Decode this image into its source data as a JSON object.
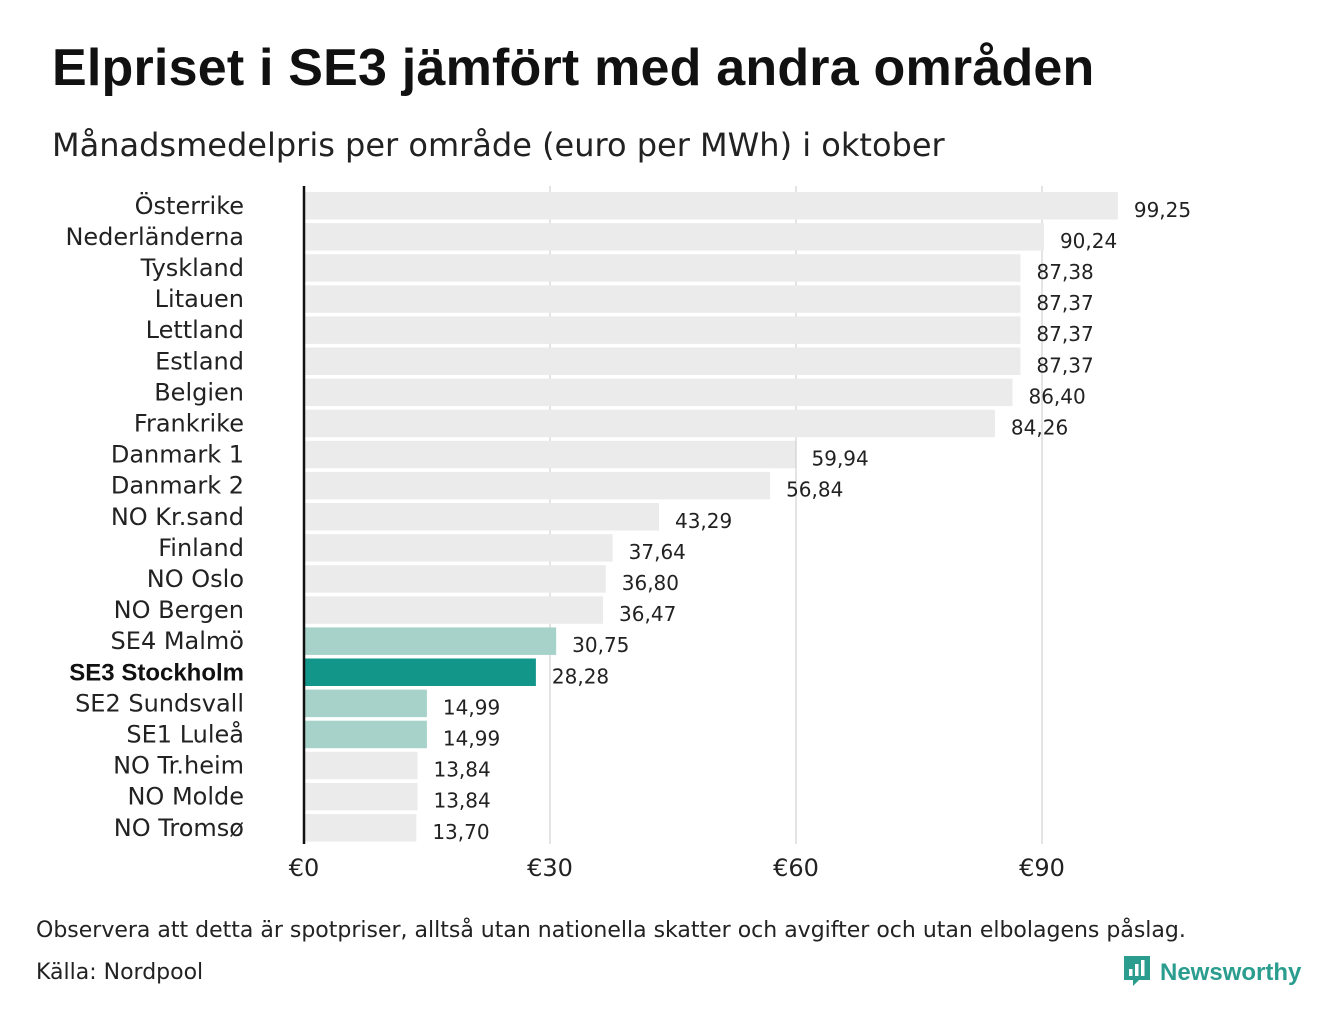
{
  "title": "Elpriset i SE3 jämfört med andra områden",
  "subtitle": "Månadsmedelpris per område (euro per MWh) i oktober",
  "note": "Observera att detta är spotpriser, alltså utan nationella skatter och avgifter och utan elbolagens påslag.",
  "source": "Källa: Nordpool",
  "brand": {
    "name": "Newsworthy",
    "icon": "newsworthy-logo-icon",
    "color": "#2a9d8f"
  },
  "chart_data": {
    "type": "bar",
    "orientation": "horizontal",
    "title": "Elpriset i SE3 jämfört med andra områden",
    "subtitle": "Månadsmedelpris per område (euro per MWh) i oktober",
    "categories": [
      "Österrike",
      "Nederländerna",
      "Tyskland",
      "Litauen",
      "Lettland",
      "Estland",
      "Belgien",
      "Frankrike",
      "Danmark  1",
      "Danmark  2",
      "NO Kr.sand",
      "Finland",
      "NO Oslo",
      "NO Bergen",
      "SE4  Malmö",
      "SE3 Stockholm",
      "SE2  Sundsvall",
      "SE1  Luleå",
      "NO Tr.heim",
      "NO Molde",
      "NO Tromsø"
    ],
    "values": [
      99.25,
      90.24,
      87.38,
      87.37,
      87.37,
      87.37,
      86.4,
      84.26,
      59.94,
      56.84,
      43.29,
      37.64,
      36.8,
      36.47,
      30.75,
      28.28,
      14.99,
      14.99,
      13.84,
      13.84,
      13.7
    ],
    "value_labels": [
      "99,25",
      "90,24",
      "87,38",
      "87,37",
      "87,37",
      "87,37",
      "86,40",
      "84,26",
      "59,94",
      "56,84",
      "43,29",
      "37,64",
      "36,80",
      "36,47",
      "30,75",
      "28,28",
      "14,99",
      "14,99",
      "13,84",
      "13,84",
      "13,70"
    ],
    "groups": [
      "other",
      "other",
      "other",
      "other",
      "other",
      "other",
      "other",
      "other",
      "other",
      "other",
      "other",
      "other",
      "other",
      "other",
      "sweden",
      "highlight",
      "sweden",
      "sweden",
      "other",
      "other",
      "other"
    ],
    "colors": {
      "other": "#ebebeb",
      "sweden": "#a6d2c9",
      "highlight": "#13968a"
    },
    "xticks": [
      0,
      30,
      60,
      90
    ],
    "xtick_labels": [
      "€0",
      "€30",
      "€60",
      "€90"
    ],
    "xlim": [
      0,
      104
    ],
    "grid": true
  }
}
